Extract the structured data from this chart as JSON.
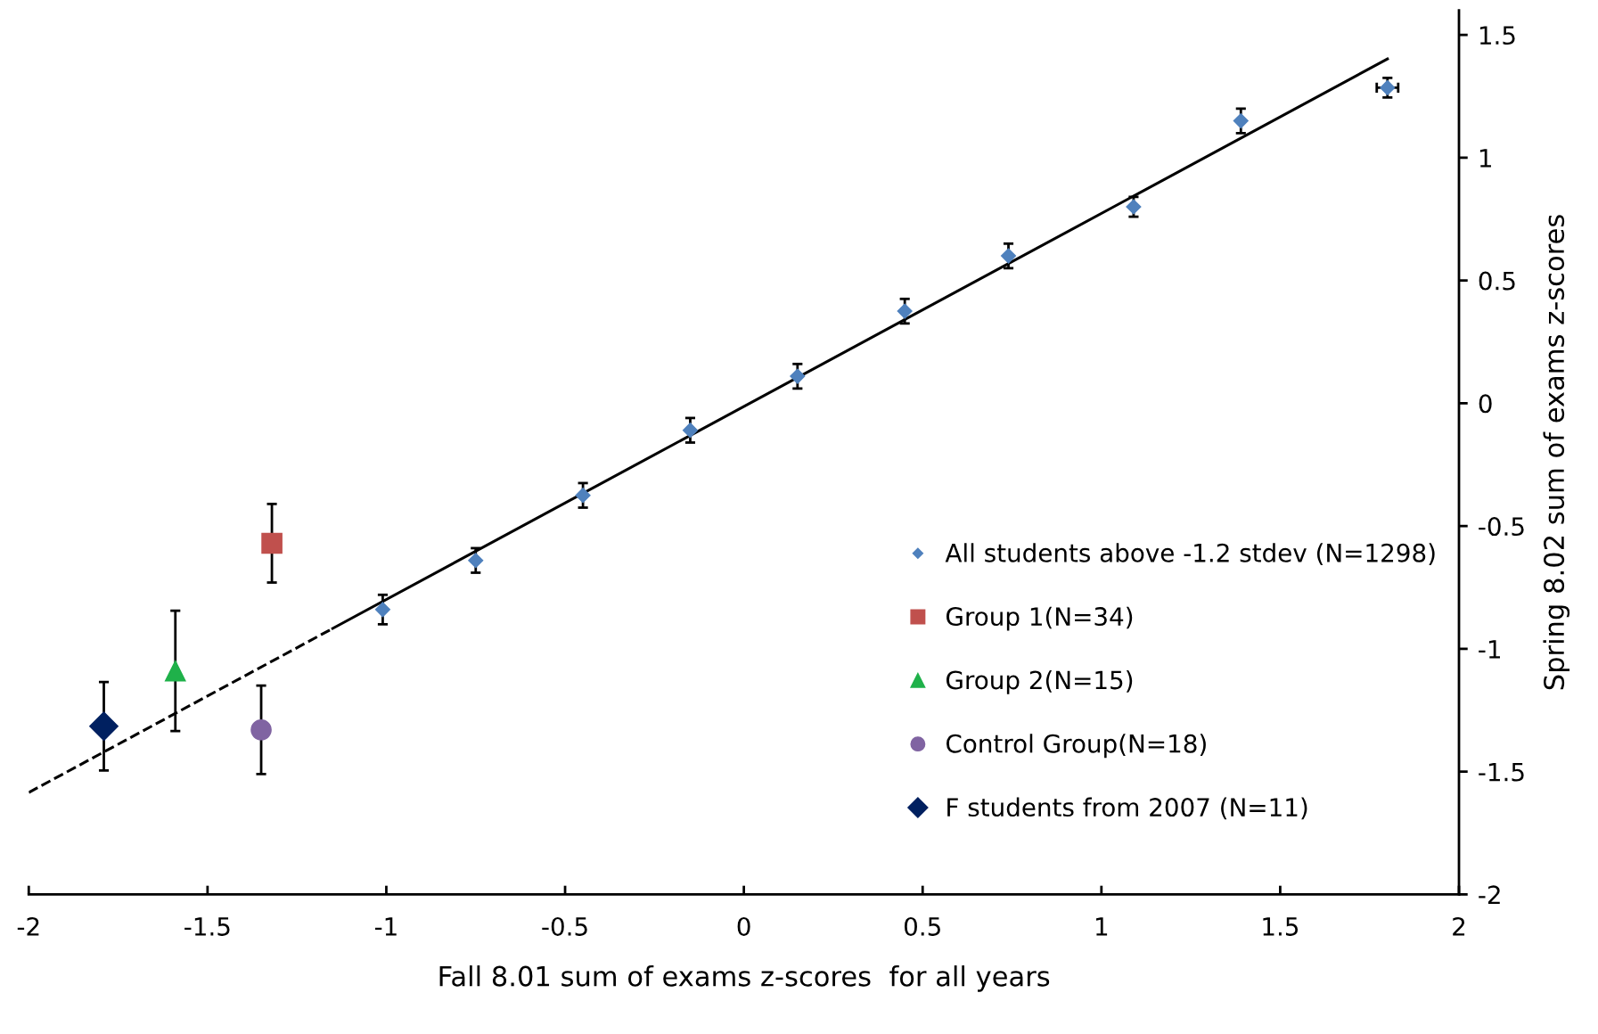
{
  "chart_data": {
    "type": "scatter",
    "xlabel": "Fall 8.01 sum of exams z-scores  for all years",
    "ylabel": "Spring 8.02 sum of exams z-scores",
    "xlim": [
      -2,
      2
    ],
    "xticks": [
      -2,
      -1.5,
      -1,
      -0.5,
      0,
      0.5,
      1,
      1.5,
      2
    ],
    "ylim": [
      -2,
      1.6
    ],
    "yticks": [
      -2,
      -1.5,
      -1,
      -0.5,
      0,
      0.5,
      1,
      1.5
    ],
    "grid": false,
    "legend": "center right",
    "series": [
      {
        "name": "All students above -1.2 stdev (N=1298)",
        "color": "#4f81bd",
        "marker": "diamond",
        "x": [
          -1.01,
          -0.75,
          -0.45,
          -0.15,
          0.15,
          0.45,
          0.74,
          1.09,
          1.39,
          1.8
        ],
        "values": [
          -0.84,
          -0.64,
          -0.375,
          -0.11,
          0.11,
          0.375,
          0.6,
          0.8,
          1.15,
          1.285
        ],
        "errors": [
          0.06,
          0.05,
          0.05,
          0.05,
          0.05,
          0.05,
          0.05,
          0.04,
          0.05,
          0.04
        ],
        "xerrors": [
          null,
          null,
          null,
          null,
          null,
          null,
          null,
          null,
          null,
          0.03
        ]
      },
      {
        "name": "Group 1(N=34)",
        "color": "#c0504d",
        "marker": "square",
        "x": [
          -1.32
        ],
        "values": [
          -0.57
        ],
        "errors": [
          0.16
        ]
      },
      {
        "name": "Group 2(N=15)",
        "color": "#1fb14a",
        "marker": "triangle",
        "x": [
          -1.59
        ],
        "values": [
          -1.09
        ],
        "errors": [
          0.245
        ]
      },
      {
        "name": "Control Group(N=18)",
        "color": "#8064a2",
        "marker": "circle",
        "x": [
          -1.35
        ],
        "values": [
          -1.33
        ],
        "errors": [
          0.18
        ]
      },
      {
        "name": "F students from 2007 (N=11)",
        "color": "#002060",
        "marker": "diamond",
        "x": [
          -1.79
        ],
        "values": [
          -1.315
        ],
        "errors": [
          0.18
        ]
      },
      {
        "type": "line",
        "color": "#000000",
        "line_style": "solid",
        "marker": "none",
        "x": [
          -1.15,
          1.8
        ],
        "values": [
          -0.917,
          1.402
        ]
      },
      {
        "type": "line",
        "color": "#000000",
        "line_style": "dashed",
        "marker": "none",
        "x": [
          -2,
          -1.15
        ],
        "values": [
          -1.585,
          -0.917
        ]
      }
    ]
  }
}
